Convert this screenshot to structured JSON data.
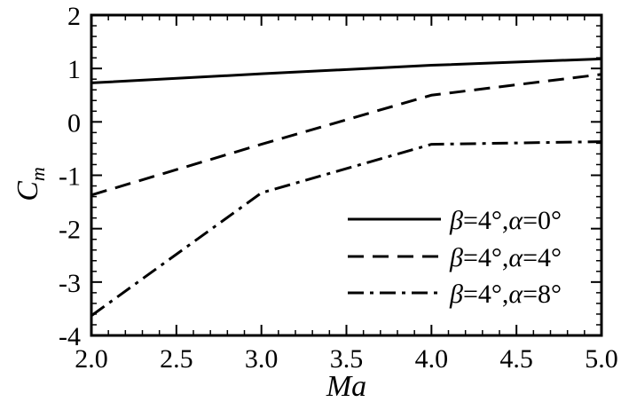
{
  "chart_data": {
    "type": "line",
    "xlabel": "Ma",
    "ylabel": {
      "base": "C",
      "subscript": "m"
    },
    "xlim": [
      2.0,
      5.0
    ],
    "ylim": [
      -4,
      2
    ],
    "xticks": [
      2.0,
      2.5,
      3.0,
      3.5,
      4.0,
      4.5,
      5.0
    ],
    "xtick_labels": [
      "2.0",
      "2.5",
      "3.0",
      "3.5",
      "4.0",
      "4.5",
      "5.0"
    ],
    "yticks": [
      -4,
      -3,
      -2,
      -1,
      0,
      1,
      2
    ],
    "ytick_labels": [
      "-4",
      "-3",
      "-2",
      "-1",
      "0",
      "1",
      "2"
    ],
    "grid": false,
    "legend_position": "lower-right",
    "series": [
      {
        "name": "β=4°,α=0°",
        "label_parts": [
          "β",
          "=4°,",
          "α",
          "=0°"
        ],
        "style": "solid",
        "x": [
          2.0,
          3.0,
          4.0,
          5.0
        ],
        "y": [
          0.73,
          0.9,
          1.06,
          1.18
        ]
      },
      {
        "name": "β=4°,α=4°",
        "label_parts": [
          "β",
          "=4°,",
          "α",
          "=4°"
        ],
        "style": "dashed",
        "x": [
          2.0,
          3.0,
          4.0,
          5.0
        ],
        "y": [
          -1.37,
          -0.42,
          0.5,
          0.89
        ]
      },
      {
        "name": "β=4°,α=8°",
        "label_parts": [
          "β",
          "=4°,",
          "α",
          "=8°"
        ],
        "style": "dashdot",
        "x": [
          2.0,
          3.0,
          4.0,
          5.0
        ],
        "y": [
          -3.63,
          -1.33,
          -0.42,
          -0.37
        ]
      }
    ]
  }
}
